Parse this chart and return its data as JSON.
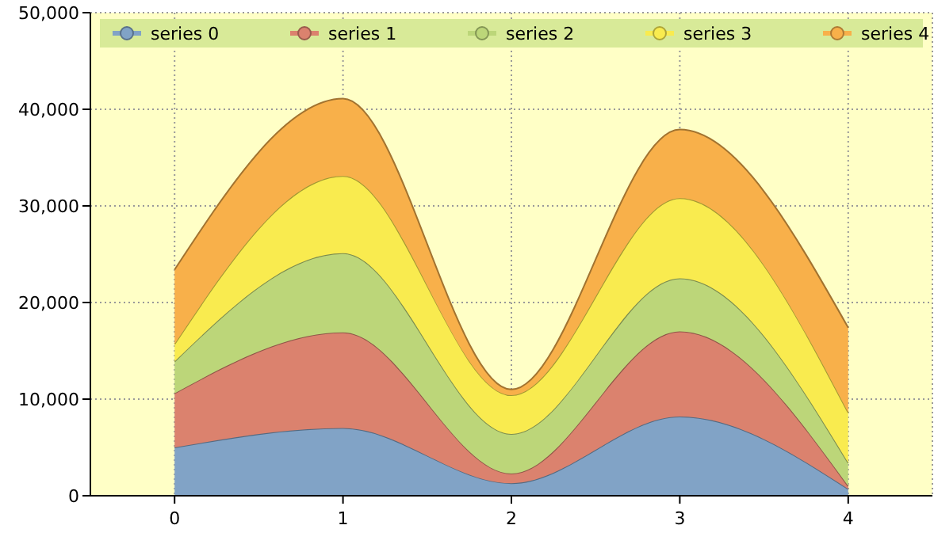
{
  "chart_data": {
    "type": "area",
    "stacked": true,
    "x": [
      0,
      1,
      2,
      3,
      4
    ],
    "xlim": [
      -0.5,
      4.5
    ],
    "xticks": [
      0,
      1,
      2,
      3,
      4
    ],
    "ylim": [
      0,
      50000
    ],
    "yticks": [
      {
        "value": 0,
        "label": "0"
      },
      {
        "value": 10000,
        "label": "10,000"
      },
      {
        "value": 20000,
        "label": "20,000"
      },
      {
        "value": 30000,
        "label": "30,000"
      },
      {
        "value": 40000,
        "label": "40,000"
      },
      {
        "value": 50000,
        "label": "50,000"
      }
    ],
    "grid": true,
    "legend": "top",
    "series": [
      {
        "name": "series 0",
        "color": "#81a3c6",
        "values": [
          5000,
          7000,
          1300,
          8200,
          700
        ]
      },
      {
        "name": "series 1",
        "color": "#db826e",
        "values": [
          5600,
          9900,
          1000,
          8800,
          300
        ]
      },
      {
        "name": "series 2",
        "color": "#bcd679",
        "values": [
          3300,
          8200,
          4100,
          5500,
          2400
        ]
      },
      {
        "name": "series 3",
        "color": "#f9eb4f",
        "values": [
          1800,
          8000,
          4000,
          8300,
          5200
        ]
      },
      {
        "name": "series 4",
        "color": "#f8b04a",
        "values": [
          7700,
          8000,
          600,
          7100,
          8800
        ]
      }
    ]
  }
}
